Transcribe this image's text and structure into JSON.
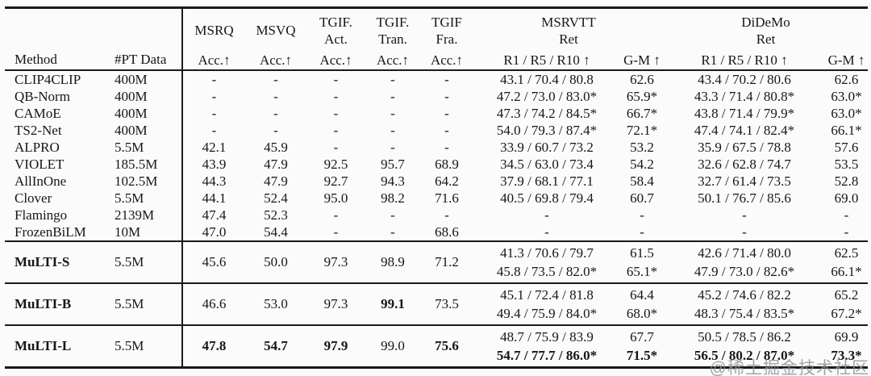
{
  "watermark": "@稀土掘金技术社区",
  "table": {
    "header": {
      "method": "Method",
      "pt": "#PT Data",
      "msrq": "MSRQ",
      "msvq": "MSVQ",
      "tgif_act": "TGIF.\nAct.",
      "tgif_tran": "TGIF.\nTran.",
      "tgif_fra": "TGIF\nFra.",
      "msrvtt": "MSRVTT\nRet",
      "didemo": "DiDeMo\nRet",
      "acc": "Acc.↑",
      "recall": "R1 / R5 / R10 ↑",
      "gm": "G-M ↑"
    },
    "rows": [
      {
        "method": "CLIP4CLIP",
        "pt": "400M",
        "msrq": "-",
        "msvq": "-",
        "act": "-",
        "tran": "-",
        "fra": "-",
        "msrvtt": "43.1 / 70.4 / 80.8",
        "gm1": "62.6",
        "didemo": "43.4 / 70.2 / 80.6",
        "gm2": "62.6"
      },
      {
        "method": "QB-Norm",
        "pt": "400M",
        "msrq": "-",
        "msvq": "-",
        "act": "-",
        "tran": "-",
        "fra": "-",
        "msrvtt": "47.2 / 73.0 / 83.0*",
        "gm1": "65.9*",
        "didemo": "43.3 / 71.4 / 80.8*",
        "gm2": "63.0*"
      },
      {
        "method": "CAMoE",
        "pt": "400M",
        "msrq": "-",
        "msvq": "-",
        "act": "-",
        "tran": "-",
        "fra": "-",
        "msrvtt": "47.3 / 74.2 / 84.5*",
        "gm1": "66.7*",
        "didemo": "43.8 / 71.4 / 79.9*",
        "gm2": "63.0*"
      },
      {
        "method": "TS2-Net",
        "pt": "400M",
        "msrq": "-",
        "msvq": "-",
        "act": "-",
        "tran": "-",
        "fra": "-",
        "msrvtt": "54.0 / 79.3 / 87.4*",
        "gm1": "72.1*",
        "didemo": "47.4 / 74.1 / 82.4*",
        "gm2": "66.1*"
      },
      {
        "method": "ALPRO",
        "pt": "5.5M",
        "msrq": "42.1",
        "msvq": "45.9",
        "act": "-",
        "tran": "-",
        "fra": "-",
        "msrvtt": "33.9 / 60.7 / 73.2",
        "gm1": "53.2",
        "didemo": "35.9 / 67.5 / 78.8",
        "gm2": "57.6"
      },
      {
        "method": "VIOLET",
        "pt": "185.5M",
        "msrq": "43.9",
        "msvq": "47.9",
        "act": "92.5",
        "tran": "95.7",
        "fra": "68.9",
        "msrvtt": "34.5 / 63.0 / 73.4",
        "gm1": "54.2",
        "didemo": "32.6 / 62.8 / 74.7",
        "gm2": "53.5"
      },
      {
        "method": "AllInOne",
        "pt": "102.5M",
        "msrq": "44.3",
        "msvq": "47.9",
        "act": "92.7",
        "tran": "94.3",
        "fra": "64.2",
        "msrvtt": "37.9 / 68.1 / 77.1",
        "gm1": "58.4",
        "didemo": "32.7 / 61.4 / 73.5",
        "gm2": "52.8"
      },
      {
        "method": "Clover",
        "pt": "5.5M",
        "msrq": "44.1",
        "msvq": "52.4",
        "act": "95.0",
        "tran": "98.2",
        "fra": "71.6",
        "msrvtt": "40.5 / 69.8 / 79.4",
        "gm1": "60.7",
        "didemo": "50.1 / 76.7 / 85.6",
        "gm2": "69.0"
      },
      {
        "method": "Flamingo",
        "pt": "2139M",
        "msrq": "47.4",
        "msvq": "52.3",
        "act": "-",
        "tran": "-",
        "fra": "-",
        "msrvtt": "-",
        "gm1": "-",
        "didemo": "-",
        "gm2": "-"
      },
      {
        "method": "FrozenBiLM",
        "pt": "10M",
        "msrq": "47.0",
        "msvq": "54.4",
        "act": "-",
        "tran": "-",
        "fra": "68.6",
        "msrvtt": "-",
        "gm1": "-",
        "didemo": "-",
        "gm2": "-"
      },
      {
        "method": "MuLTI-S",
        "pt": "5.5M",
        "msrq": "45.6",
        "msvq": "50.0",
        "act": "97.3",
        "tran": "98.9",
        "fra": "71.2",
        "msrvtt1": "41.3 / 70.6 / 79.7",
        "msrvtt2": "45.8 / 73.5 / 82.0*",
        "gm1a": "61.5",
        "gm1b": "65.1*",
        "didemo1": "42.6 / 71.4 / 80.0",
        "didemo2": "47.9 / 73.0 / 82.6*",
        "gm2a": "62.5",
        "gm2b": "66.1*"
      },
      {
        "method": "MuLTI-B",
        "pt": "5.5M",
        "msrq": "46.6",
        "msvq": "53.0",
        "act": "97.3",
        "tran": "99.1",
        "fra": "73.5",
        "msrvtt1": "45.1 / 72.4 / 81.8",
        "msrvtt2": "49.4 / 75.9 / 84.0*",
        "gm1a": "64.4",
        "gm1b": "68.0*",
        "didemo1": "45.2 / 74.6 / 82.2",
        "didemo2": "48.3 / 75.4 / 83.5*",
        "gm2a": "65.2",
        "gm2b": "67.2*"
      },
      {
        "method": "MuLTI-L",
        "pt": "5.5M",
        "msrq": "47.8",
        "msvq": "54.7",
        "act": "97.9",
        "tran": "99.0",
        "fra": "75.6",
        "msrvtt1": "48.7 / 75.9 / 83.9",
        "msrvtt2": "54.7 / 77.7 / 86.0*",
        "gm1a": "67.7",
        "gm1b": "71.5*",
        "didemo1": "50.5 / 78.5 / 86.2",
        "didemo2": "56.5 / 80.2 / 87.0*",
        "gm2a": "69.9",
        "gm2b": "73.3*"
      }
    ]
  }
}
